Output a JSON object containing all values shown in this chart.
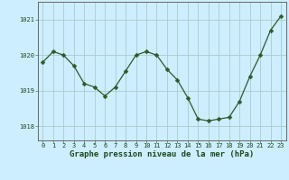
{
  "x": [
    0,
    1,
    2,
    3,
    4,
    5,
    6,
    7,
    8,
    9,
    10,
    11,
    12,
    13,
    14,
    15,
    16,
    17,
    18,
    19,
    20,
    21,
    22,
    23
  ],
  "y": [
    1019.8,
    1020.1,
    1020.0,
    1019.7,
    1019.2,
    1019.1,
    1018.85,
    1019.1,
    1019.55,
    1020.0,
    1020.1,
    1020.0,
    1019.6,
    1019.3,
    1018.8,
    1018.2,
    1018.15,
    1018.2,
    1018.25,
    1018.7,
    1019.4,
    1020.0,
    1020.7,
    1021.1
  ],
  "line_color": "#2d5a27",
  "marker": "D",
  "marker_size": 2.5,
  "bg_color": "#cceeff",
  "grid_color": "#aacccc",
  "ylabel_ticks": [
    1018,
    1019,
    1020,
    1021
  ],
  "xlabel_label": "Graphe pression niveau de la mer (hPa)",
  "xlim": [
    -0.5,
    23.5
  ],
  "ylim": [
    1017.6,
    1021.5
  ],
  "axis_color": "#666666",
  "tick_label_color": "#1a4a1a",
  "xlabel_color": "#1a4a1a",
  "tick_fontsize": 5.0,
  "xlabel_fontsize": 6.5
}
